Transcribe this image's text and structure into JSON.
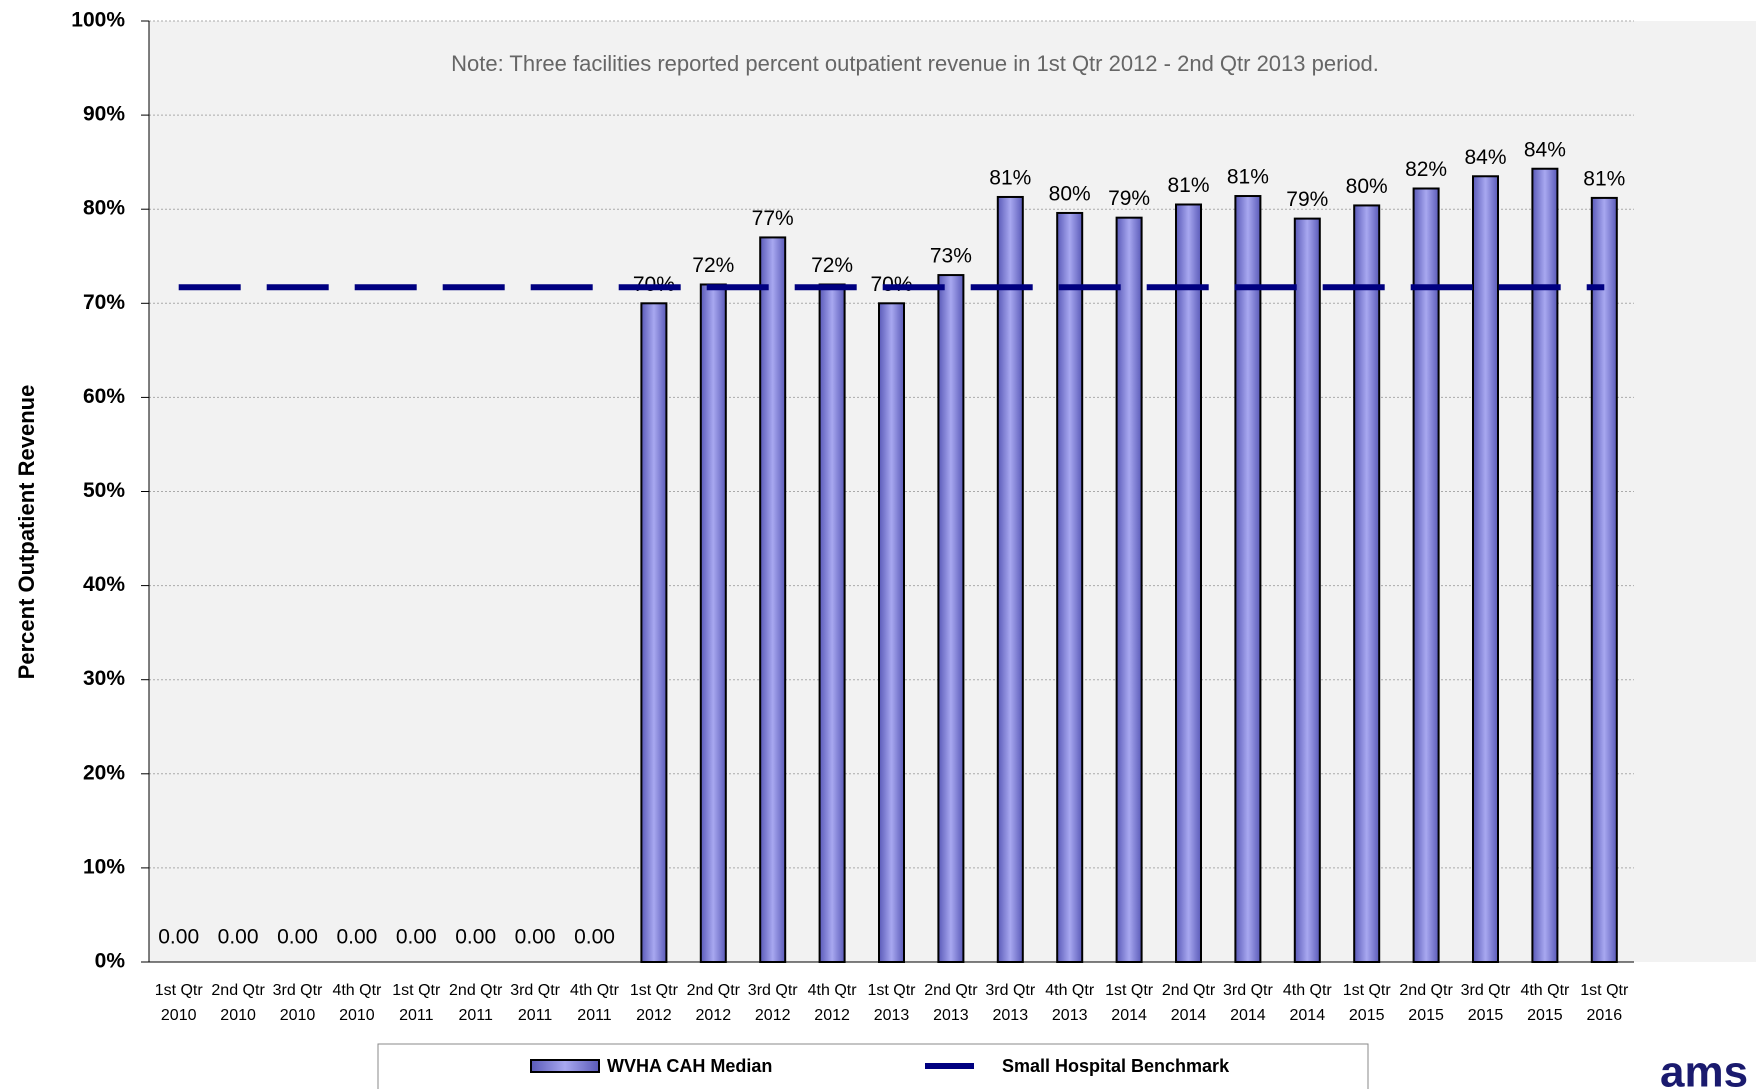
{
  "chart_data": {
    "type": "bar",
    "y_axis_label": "Percent Outpatient Revenue",
    "annotation": "Note:  Three facilities reported percent outpatient revenue in 1st Qtr 2012 - 2nd Qtr 2013 period.",
    "logo": "ams",
    "categories": [
      [
        "1st Qtr",
        "2010"
      ],
      [
        "2nd Qtr",
        "2010"
      ],
      [
        "3rd Qtr",
        "2010"
      ],
      [
        "4th Qtr",
        "2010"
      ],
      [
        "1st Qtr",
        "2011"
      ],
      [
        "2nd Qtr",
        "2011"
      ],
      [
        "3rd Qtr",
        "2011"
      ],
      [
        "4th Qtr",
        "2011"
      ],
      [
        "1st Qtr",
        "2012"
      ],
      [
        "2nd Qtr",
        "2012"
      ],
      [
        "3rd Qtr",
        "2012"
      ],
      [
        "4th Qtr",
        "2012"
      ],
      [
        "1st Qtr",
        "2013"
      ],
      [
        "2nd Qtr",
        "2013"
      ],
      [
        "3rd Qtr",
        "2013"
      ],
      [
        "4th Qtr",
        "2013"
      ],
      [
        "1st Qtr",
        "2014"
      ],
      [
        "2nd Qtr",
        "2014"
      ],
      [
        "3rd Qtr",
        "2014"
      ],
      [
        "4th Qtr",
        "2014"
      ],
      [
        "1st Qtr",
        "2015"
      ],
      [
        "2nd Qtr",
        "2015"
      ],
      [
        "3rd Qtr",
        "2015"
      ],
      [
        "4th Qtr",
        "2015"
      ],
      [
        "1st Qtr",
        "2016"
      ]
    ],
    "series": [
      {
        "name": "WVHA CAH Median",
        "color": "#8585e0",
        "values": [
          0,
          0,
          0,
          0,
          0,
          0,
          0,
          0,
          70,
          72,
          77,
          72,
          70,
          73,
          81.3,
          79.6,
          79.1,
          80.5,
          81.4,
          79,
          80.4,
          82.2,
          83.5,
          84.3,
          81.2
        ],
        "value_labels": [
          "0.00",
          "0.00",
          "0.00",
          "0.00",
          "0.00",
          "0.00",
          "0.00",
          "0.00",
          "70%",
          "72%",
          "77%",
          "72%",
          "70%",
          "73%",
          "81%",
          "80%",
          "79%",
          "81%",
          "81%",
          "79%",
          "80%",
          "82%",
          "84%",
          "84%",
          "81%"
        ]
      },
      {
        "name": "Small Hospital Benchmark",
        "color": "#000080",
        "type": "line",
        "dashed": true,
        "values": [
          71.7,
          71.7,
          71.7,
          71.7,
          71.7,
          71.7,
          71.7,
          71.7,
          71.7,
          71.7,
          71.7,
          71.7,
          71.7,
          71.7,
          71.7,
          71.7,
          71.7,
          71.7,
          71.7,
          71.7,
          71.7,
          71.7,
          71.7,
          71.7,
          71.7
        ]
      }
    ],
    "ylim": [
      0,
      100
    ],
    "yticks": [
      {
        "value": 0,
        "label": "0%"
      },
      {
        "value": 10,
        "label": "10%"
      },
      {
        "value": 20,
        "label": "20%"
      },
      {
        "value": 30,
        "label": "30%"
      },
      {
        "value": 40,
        "label": "40%"
      },
      {
        "value": 50,
        "label": "50%"
      },
      {
        "value": 60,
        "label": "60%"
      },
      {
        "value": 70,
        "label": "70%"
      },
      {
        "value": 80,
        "label": "80%"
      },
      {
        "value": 90,
        "label": "90%"
      },
      {
        "value": 100,
        "label": "100%"
      }
    ],
    "grid": true
  }
}
